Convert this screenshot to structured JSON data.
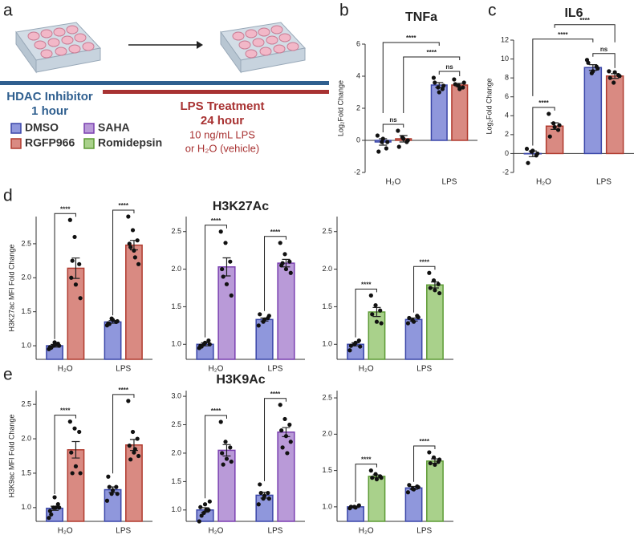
{
  "panels": {
    "a": "a",
    "b": "b",
    "c": "c",
    "d": "d",
    "e": "e",
    "row_d_title": "H3K27Ac",
    "row_e_title": "H3K9Ac"
  },
  "schematic": {
    "inhibitor": "HDAC Inhibitor",
    "inhibitor_time": "1 hour",
    "treatment": "LPS Treatment",
    "treatment_time": "24 hour",
    "dose": "10 ng/mL LPS",
    "vehicle": "or H₂O (vehicle)",
    "inhibitor_color": "#2f5f8f",
    "treatment_color": "#a83232"
  },
  "chart_data": [
    {
      "type": "bar",
      "title": "TNFa",
      "ylabel": "Log₂Fold Change",
      "categories": [
        "H₂O",
        "LPS"
      ],
      "ylim": [
        -2,
        6
      ],
      "yticks": [
        -2,
        0,
        2,
        4,
        6
      ],
      "series": [
        {
          "name": "DMSO",
          "color": "#8f97dc",
          "edgecolor": "#3a46a8",
          "values": [
            -0.1,
            3.45
          ],
          "errors": [
            0.2,
            0.15
          ],
          "points": [
            [
              0.3,
              -0.1,
              -0.5,
              -0.7,
              0.1,
              -0.1
            ],
            [
              3.9,
              3.3,
              3.2,
              3.6,
              3.0,
              3.4
            ]
          ]
        },
        {
          "name": "RGFP966",
          "color": "#d98a82",
          "edgecolor": "#b03a2e",
          "values": [
            0.1,
            3.45
          ],
          "errors": [
            0.2,
            0.1
          ],
          "points": [
            [
              0.6,
              0.2,
              -0.1,
              -0.4,
              0.1,
              0.0
            ],
            [
              3.8,
              3.4,
              3.3,
              3.5,
              3.2,
              3.6
            ]
          ]
        }
      ],
      "comparisons": [
        {
          "label": "ns",
          "a": [
            0,
            0
          ],
          "b": [
            0,
            1
          ]
        },
        {
          "label": "ns",
          "a": [
            1,
            0
          ],
          "b": [
            1,
            1
          ]
        },
        {
          "label": "****",
          "a": [
            0,
            1
          ],
          "b": [
            1,
            1
          ]
        },
        {
          "label": "****",
          "a": [
            0,
            0
          ],
          "b": [
            1,
            0
          ]
        }
      ]
    },
    {
      "type": "bar",
      "title": "IL6",
      "ylabel": "Log₂Fold Change",
      "categories": [
        "H₂O",
        "LPS"
      ],
      "ylim": [
        -2,
        12
      ],
      "yticks": [
        -2,
        0,
        2,
        4,
        6,
        8,
        10,
        12
      ],
      "series": [
        {
          "color": "#8f97dc",
          "edgecolor": "#3a46a8",
          "values": [
            -0.03,
            9.1
          ],
          "errors": [
            0.3,
            0.3
          ],
          "points": [
            [
              0.5,
              0.2,
              -0.2,
              -1.0,
              0.3,
              0.0
            ],
            [
              9.9,
              8.5,
              9.2,
              9.6,
              8.7,
              9.0
            ]
          ]
        },
        {
          "color": "#d98a82",
          "edgecolor": "#b03a2e",
          "values": [
            2.9,
            8.2
          ],
          "errors": [
            0.35,
            0.25
          ],
          "points": [
            [
              4.2,
              3.2,
              2.5,
              1.8,
              2.8,
              3.0
            ],
            [
              8.7,
              7.5,
              8.3,
              8.0,
              8.6,
              8.2
            ]
          ]
        }
      ],
      "comparisons": [
        {
          "label": "****",
          "a": [
            0,
            0
          ],
          "b": [
            0,
            1
          ]
        },
        {
          "label": "ns",
          "a": [
            1,
            0
          ],
          "b": [
            1,
            1
          ]
        },
        {
          "label": "****",
          "a": [
            0,
            0
          ],
          "b": [
            1,
            0
          ]
        },
        {
          "label": "****",
          "a": [
            0,
            1
          ],
          "b": [
            1,
            1
          ]
        }
      ]
    },
    {
      "type": "bar",
      "ylabel": "H3K27ac MFI Fold Change",
      "categories": [
        "H₂O",
        "LPS"
      ],
      "ylim": [
        0.8,
        2.9
      ],
      "yticks": [
        {
          "value": 1,
          "label": "1.0"
        },
        1.5,
        {
          "value": 2,
          "label": "2.0"
        },
        2.5
      ],
      "series": [
        {
          "color": "#8f97dc",
          "edgecolor": "#3a46a8",
          "values": [
            1.0,
            1.35
          ],
          "errors": [
            0.02,
            0.02
          ],
          "points": [
            [
              0.95,
              1.0,
              1.03,
              0.98,
              1.05,
              1.0,
              0.97,
              1.02
            ],
            [
              1.3,
              1.4,
              1.35,
              1.33,
              1.38,
              1.36,
              1.32
            ]
          ]
        },
        {
          "color": "#d98a82",
          "edgecolor": "#b03a2e",
          "values": [
            2.14,
            2.48
          ],
          "errors": [
            0.15,
            0.07
          ],
          "points": [
            [
              2.85,
              2.6,
              2.2,
              2.0,
              1.9,
              1.7,
              2.25
            ],
            [
              2.9,
              2.7,
              2.55,
              2.5,
              2.4,
              2.2,
              2.45,
              2.3
            ]
          ]
        }
      ],
      "comparisons": [
        {
          "label": "****",
          "a": [
            0,
            0
          ],
          "b": [
            0,
            1
          ]
        },
        {
          "label": "****",
          "a": [
            1,
            0
          ],
          "b": [
            1,
            1
          ]
        }
      ]
    },
    {
      "type": "bar",
      "categories": [
        "H₂O",
        "LPS"
      ],
      "ylim": [
        0.8,
        2.7
      ],
      "yticks": [
        {
          "value": 1,
          "label": "1.0"
        },
        1.5,
        {
          "value": 2,
          "label": "2.0"
        },
        2.5
      ],
      "series": [
        {
          "color": "#8f97dc",
          "edgecolor": "#3a46a8",
          "values": [
            1.0,
            1.33
          ],
          "errors": [
            0.02,
            0.02
          ],
          "points": [
            [
              0.95,
              1.0,
              1.05,
              0.98,
              1.02,
              1.0,
              0.97
            ],
            [
              1.25,
              1.3,
              1.35,
              1.4,
              1.33,
              1.38
            ]
          ]
        },
        {
          "name": "SAHA",
          "color": "#b99ad8",
          "edgecolor": "#7a3fb0",
          "values": [
            2.03,
            2.08
          ],
          "errors": [
            0.12,
            0.05
          ],
          "points": [
            [
              2.5,
              2.35,
              2.1,
              2.0,
              1.8,
              1.65,
              1.9
            ],
            [
              2.35,
              2.2,
              2.1,
              2.05,
              2.0,
              1.95,
              2.08
            ]
          ]
        }
      ],
      "comparisons": [
        {
          "label": "****",
          "a": [
            0,
            0
          ],
          "b": [
            0,
            1
          ]
        },
        {
          "label": "****",
          "a": [
            1,
            0
          ],
          "b": [
            1,
            1
          ]
        }
      ]
    },
    {
      "type": "bar",
      "categories": [
        "H₂O",
        "LPS"
      ],
      "ylim": [
        0.8,
        2.7
      ],
      "yticks": [
        {
          "value": 1,
          "label": "1.0"
        },
        1.5,
        {
          "value": 2,
          "label": "2.0"
        },
        2.5
      ],
      "series": [
        {
          "color": "#8f97dc",
          "edgecolor": "#3a46a8",
          "values": [
            1.0,
            1.33
          ],
          "errors": [
            0.02,
            0.02
          ],
          "points": [
            [
              0.92,
              1.0,
              1.05,
              0.98,
              1.02,
              0.97
            ],
            [
              1.28,
              1.32,
              1.38,
              1.35,
              1.3,
              1.36
            ]
          ]
        },
        {
          "name": "Romidepsin",
          "color": "#a9d18b",
          "edgecolor": "#5c9a34",
          "values": [
            1.43,
            1.79
          ],
          "errors": [
            0.06,
            0.04
          ],
          "points": [
            [
              1.65,
              1.52,
              1.45,
              1.4,
              1.3,
              1.28
            ],
            [
              1.95,
              1.85,
              1.8,
              1.75,
              1.72,
              1.68
            ]
          ]
        }
      ],
      "comparisons": [
        {
          "label": "****",
          "a": [
            0,
            0
          ],
          "b": [
            0,
            1
          ]
        },
        {
          "label": "****",
          "a": [
            1,
            0
          ],
          "b": [
            1,
            1
          ]
        }
      ]
    },
    {
      "type": "bar",
      "ylabel": "H3K9ac MFI Fold Change",
      "categories": [
        "H₂O",
        "LPS"
      ],
      "ylim": [
        0.8,
        2.7
      ],
      "yticks": [
        {
          "value": 1,
          "label": "1.0"
        },
        1.5,
        {
          "value": 2,
          "label": "2.0"
        },
        2.5
      ],
      "series": [
        {
          "color": "#8f97dc",
          "edgecolor": "#3a46a8",
          "values": [
            0.99,
            1.26
          ],
          "errors": [
            0.03,
            0.04
          ],
          "points": [
            [
              0.85,
              1.0,
              1.05,
              0.95,
              1.15,
              1.0,
              0.9,
              1.0
            ],
            [
              1.1,
              1.2,
              1.3,
              1.45,
              1.25,
              1.2,
              1.3
            ]
          ]
        },
        {
          "color": "#d98a82",
          "edgecolor": "#b03a2e",
          "values": [
            1.84,
            1.91
          ],
          "errors": [
            0.12,
            0.08
          ],
          "points": [
            [
              2.25,
              2.15,
              2.1,
              1.8,
              1.6,
              1.5,
              1.5
            ],
            [
              2.55,
              2.1,
              2.0,
              1.9,
              1.8,
              1.75,
              1.7,
              1.85
            ]
          ]
        }
      ],
      "comparisons": [
        {
          "label": "****",
          "a": [
            0,
            0
          ],
          "b": [
            0,
            1
          ]
        },
        {
          "label": "****",
          "a": [
            1,
            0
          ],
          "b": [
            1,
            1
          ]
        }
      ]
    },
    {
      "type": "bar",
      "categories": [
        "H₂O",
        "LPS"
      ],
      "ylim": [
        0.8,
        3.1
      ],
      "yticks": [
        {
          "value": 1,
          "label": "1.0"
        },
        1.5,
        {
          "value": 2,
          "label": "2.0"
        },
        2.5,
        {
          "value": 3,
          "label": "3.0"
        }
      ],
      "series": [
        {
          "color": "#8f97dc",
          "edgecolor": "#3a46a8",
          "values": [
            1.0,
            1.26
          ],
          "errors": [
            0.04,
            0.05
          ],
          "points": [
            [
              0.8,
              0.95,
              1.0,
              1.05,
              1.1,
              1.15,
              0.9,
              1.0
            ],
            [
              1.1,
              1.2,
              1.3,
              1.45,
              1.25,
              1.2,
              1.3
            ]
          ]
        },
        {
          "color": "#b99ad8",
          "edgecolor": "#7a3fb0",
          "values": [
            2.05,
            2.37
          ],
          "errors": [
            0.1,
            0.08
          ],
          "points": [
            [
              2.55,
              2.2,
              2.1,
              2.0,
              1.9,
              1.85,
              1.8
            ],
            [
              2.85,
              2.6,
              2.5,
              2.4,
              2.3,
              2.2,
              2.1,
              2.0
            ]
          ]
        }
      ],
      "comparisons": [
        {
          "label": "****",
          "a": [
            0,
            0
          ],
          "b": [
            0,
            1
          ]
        },
        {
          "label": "****",
          "a": [
            1,
            0
          ],
          "b": [
            1,
            1
          ]
        }
      ]
    },
    {
      "type": "bar",
      "categories": [
        "H₂O",
        "LPS"
      ],
      "ylim": [
        0.8,
        2.6
      ],
      "yticks": [
        {
          "value": 1,
          "label": "1.0"
        },
        1.5,
        {
          "value": 2,
          "label": "2.0"
        },
        2.5
      ],
      "series": [
        {
          "color": "#8f97dc",
          "edgecolor": "#3a46a8",
          "values": [
            1.0,
            1.26
          ],
          "errors": [
            0.01,
            0.02
          ],
          "points": [
            [
              0.98,
              1.0,
              1.02,
              1.0,
              0.99
            ],
            [
              1.2,
              1.25,
              1.28,
              1.3,
              1.24,
              1.27
            ]
          ]
        },
        {
          "color": "#a9d18b",
          "edgecolor": "#5c9a34",
          "values": [
            1.42,
            1.63
          ],
          "errors": [
            0.02,
            0.03
          ],
          "points": [
            [
              1.5,
              1.45,
              1.42,
              1.4,
              1.38,
              1.4
            ],
            [
              1.75,
              1.68,
              1.62,
              1.6,
              1.58,
              1.65
            ]
          ]
        }
      ],
      "comparisons": [
        {
          "label": "****",
          "a": [
            0,
            0
          ],
          "b": [
            0,
            1
          ]
        },
        {
          "label": "****",
          "a": [
            1,
            0
          ],
          "b": [
            1,
            1
          ]
        }
      ]
    }
  ]
}
